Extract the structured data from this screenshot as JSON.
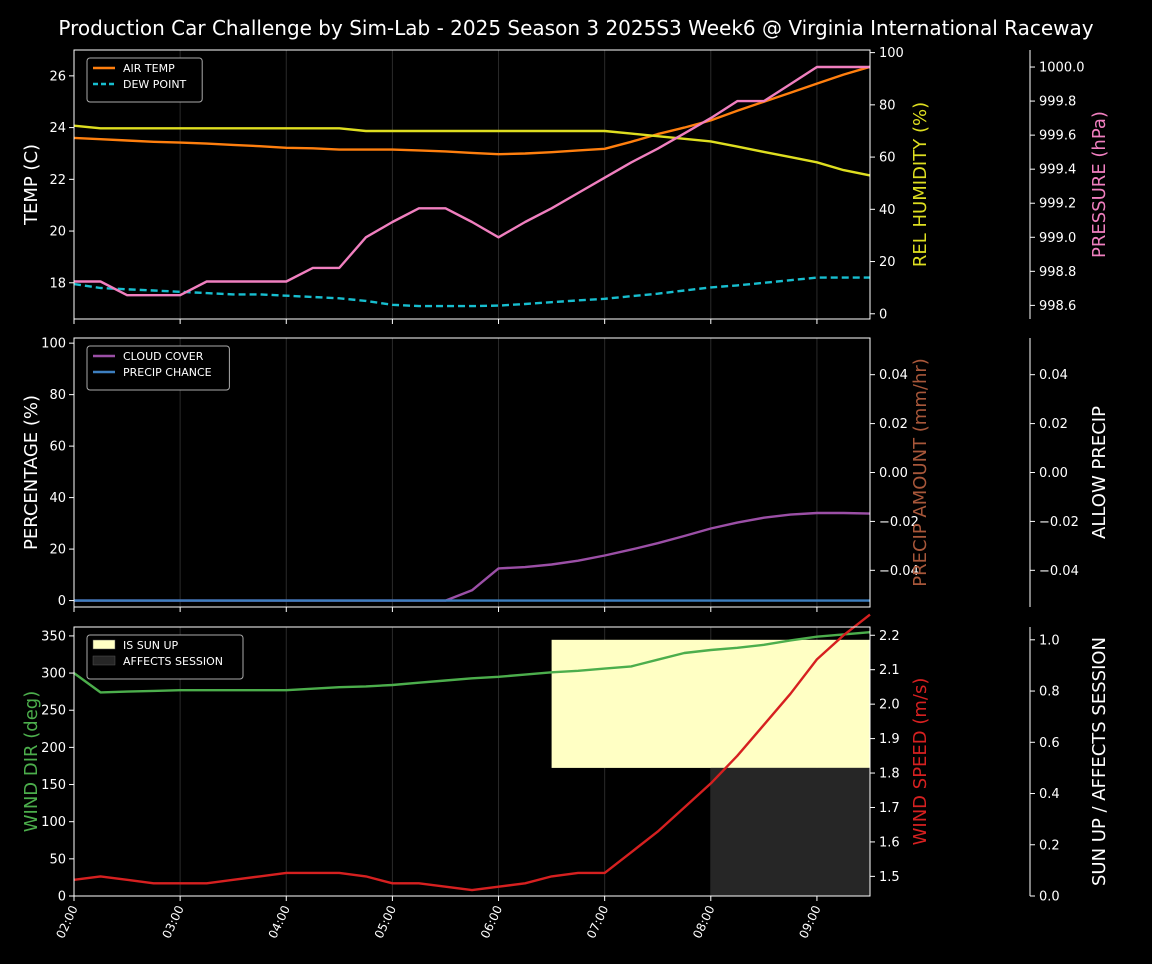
{
  "chart_title": "Production Car Challenge by Sim-Lab - 2025 Season 3 2025S3 Week6 @ Virginia International Raceway",
  "colors": {
    "background": "#000000",
    "axis": "#ffffff",
    "air_temp": "#ff7f0e",
    "dew_point": "#17becf",
    "rel_humidity": "#dede20",
    "pressure": "#f07fbf",
    "cloud_cover": "#9b4fa6",
    "precip_chance": "#3d7fc0",
    "precip_amount_label": "#a8573a",
    "wind_dir": "#4cae4c",
    "wind_speed": "#d62020",
    "sun_up": "#ffffc4",
    "affects_session": "#262626"
  },
  "chart_data": [
    {
      "type": "line",
      "x": [
        "02:00",
        "02:15",
        "02:30",
        "02:45",
        "03:00",
        "03:15",
        "03:30",
        "03:45",
        "04:00",
        "04:15",
        "04:30",
        "04:45",
        "05:00",
        "05:15",
        "05:30",
        "05:45",
        "06:00",
        "06:15",
        "06:30",
        "06:45",
        "07:00",
        "07:15",
        "07:30",
        "07:45",
        "08:00",
        "08:15",
        "08:30",
        "08:45",
        "09:00",
        "09:15",
        "09:30"
      ],
      "xtick_labels": [
        "02:00",
        "03:00",
        "04:00",
        "05:00",
        "06:00",
        "07:00",
        "08:00",
        "09:00"
      ],
      "legend_position": "top-left",
      "axes": {
        "left": {
          "label": "TEMP (C)",
          "ylim": [
            16.6,
            27.0
          ],
          "ticks": [
            "18",
            "20",
            "22",
            "24",
            "26"
          ]
        },
        "right1": {
          "label": "REL HUMIDITY (%)",
          "ylim": [
            -2,
            101
          ],
          "ticks": [
            "0",
            "20",
            "40",
            "60",
            "80",
            "100"
          ]
        },
        "right2": {
          "label": "PRESSURE (hPa)",
          "ylim": [
            998.52,
            1000.1
          ],
          "ticks": [
            "998.6",
            "998.8",
            "999.0",
            "999.2",
            "999.4",
            "999.6",
            "999.8",
            "1000.0"
          ]
        }
      },
      "series": [
        {
          "name": "AIR TEMP",
          "axis": "left",
          "values": [
            23.6,
            23.55,
            23.5,
            23.45,
            23.42,
            23.38,
            23.33,
            23.28,
            23.22,
            23.2,
            23.15,
            23.15,
            23.15,
            23.12,
            23.08,
            23.02,
            22.97,
            23.0,
            23.05,
            23.12,
            23.18,
            23.45,
            23.75,
            24.0,
            24.28,
            24.65,
            25.0,
            25.35,
            25.7,
            26.05,
            26.35
          ]
        },
        {
          "name": "DEW POINT",
          "axis": "left",
          "values": [
            17.95,
            17.8,
            17.75,
            17.7,
            17.65,
            17.6,
            17.55,
            17.55,
            17.5,
            17.45,
            17.4,
            17.3,
            17.15,
            17.1,
            17.1,
            17.1,
            17.12,
            17.18,
            17.25,
            17.32,
            17.38,
            17.48,
            17.58,
            17.7,
            17.82,
            17.9,
            18.0,
            18.1,
            18.2,
            18.2,
            18.2
          ]
        },
        {
          "name": "REL HUMIDITY",
          "axis": "right1",
          "values": [
            72,
            71,
            71,
            71,
            71,
            71,
            71,
            71,
            71,
            71,
            71,
            70,
            70,
            70,
            70,
            70,
            70,
            70,
            70,
            70,
            70,
            69,
            68,
            67,
            66,
            64,
            62,
            60,
            58,
            55,
            53
          ]
        },
        {
          "name": "PRESSURE",
          "axis": "right2",
          "values": [
            998.74,
            998.74,
            998.66,
            998.66,
            998.66,
            998.74,
            998.74,
            998.74,
            998.74,
            998.82,
            998.82,
            999.0,
            999.09,
            999.17,
            999.17,
            999.09,
            999.0,
            999.09,
            999.17,
            999.26,
            999.35,
            999.44,
            999.52,
            999.61,
            999.7,
            999.8,
            999.8,
            999.9,
            1000.0,
            1000.0,
            1000.0
          ]
        }
      ]
    },
    {
      "type": "line",
      "x": [
        "02:00",
        "02:15",
        "02:30",
        "02:45",
        "03:00",
        "03:15",
        "03:30",
        "03:45",
        "04:00",
        "04:15",
        "04:30",
        "04:45",
        "05:00",
        "05:15",
        "05:30",
        "05:45",
        "06:00",
        "06:15",
        "06:30",
        "06:45",
        "07:00",
        "07:15",
        "07:30",
        "07:45",
        "08:00",
        "08:15",
        "08:30",
        "08:45",
        "09:00",
        "09:15",
        "09:30"
      ],
      "legend_position": "top-left",
      "axes": {
        "left": {
          "label": "PERCENTAGE (%)",
          "ylim": [
            -2.5,
            102
          ],
          "ticks": [
            "0",
            "20",
            "40",
            "60",
            "80",
            "100"
          ]
        },
        "right1": {
          "label": "PRECIP AMOUNT (mm/hr)",
          "ylim": [
            -0.055,
            0.055
          ],
          "ticks": [
            "−0.04",
            "−0.02",
            "0.00",
            "0.02",
            "0.04"
          ]
        },
        "right2": {
          "label": "ALLOW PRECIP",
          "ylim": [
            -0.055,
            0.055
          ],
          "ticks": [
            "−0.04",
            "−0.02",
            "0.00",
            "0.02",
            "0.04"
          ]
        }
      },
      "series": [
        {
          "name": "CLOUD COVER",
          "axis": "left",
          "values": [
            0,
            0,
            0,
            0,
            0,
            0,
            0,
            0,
            0,
            0,
            0,
            0,
            0,
            0,
            0,
            4,
            12.5,
            13,
            14,
            15.5,
            17.5,
            19.8,
            22.3,
            25.1,
            28,
            30.3,
            32.2,
            33.4,
            34,
            34,
            33.8
          ]
        },
        {
          "name": "PRECIP CHANCE",
          "axis": "left",
          "values": [
            0,
            0,
            0,
            0,
            0,
            0,
            0,
            0,
            0,
            0,
            0,
            0,
            0,
            0,
            0,
            0,
            0,
            0,
            0,
            0,
            0,
            0,
            0,
            0,
            0,
            0,
            0,
            0,
            0,
            0,
            0
          ]
        }
      ]
    },
    {
      "type": "line",
      "x": [
        "02:00",
        "02:15",
        "02:30",
        "02:45",
        "03:00",
        "03:15",
        "03:30",
        "03:45",
        "04:00",
        "04:15",
        "04:30",
        "04:45",
        "05:00",
        "05:15",
        "05:30",
        "05:45",
        "06:00",
        "06:15",
        "06:30",
        "06:45",
        "07:00",
        "07:15",
        "07:30",
        "07:45",
        "08:00",
        "08:15",
        "08:30",
        "08:45",
        "09:00",
        "09:15",
        "09:30"
      ],
      "legend_position": "top-left",
      "axes": {
        "left": {
          "label": "WIND DIR (deg)",
          "ylim": [
            0,
            362
          ],
          "ticks": [
            "0",
            "50",
            "100",
            "150",
            "200",
            "250",
            "300",
            "350"
          ]
        },
        "right1": {
          "label": "WIND SPEED (m/s)",
          "ylim": [
            1.443,
            2.224
          ],
          "ticks": [
            "1.5",
            "1.6",
            "1.7",
            "1.8",
            "1.9",
            "2.0",
            "2.1",
            "2.2"
          ]
        },
        "right2": {
          "label": "SUN UP / AFFECTS SESSION",
          "ylim": [
            0,
            1.05
          ],
          "ticks": [
            "0.0",
            "0.2",
            "0.4",
            "0.6",
            "0.8",
            "1.0"
          ]
        }
      },
      "series": [
        {
          "name": "WIND DIR",
          "axis": "left",
          "values": [
            300,
            274,
            275,
            276,
            277,
            277,
            277,
            277,
            277,
            279,
            281,
            282,
            284,
            287,
            290,
            293,
            295,
            298,
            301,
            303,
            306,
            309,
            318,
            327,
            331,
            334,
            338,
            344,
            349,
            352,
            355
          ]
        },
        {
          "name": "WIND SPEED",
          "axis": "right1",
          "values": [
            1.49,
            1.5,
            1.49,
            1.48,
            1.48,
            1.48,
            1.49,
            1.5,
            1.51,
            1.51,
            1.51,
            1.5,
            1.48,
            1.48,
            1.47,
            1.46,
            1.47,
            1.48,
            1.5,
            1.51,
            1.51,
            1.57,
            1.63,
            1.7,
            1.77,
            1.85,
            1.94,
            2.03,
            2.13,
            2.2,
            2.26
          ]
        }
      ],
      "regions": [
        {
          "name": "IS SUN UP",
          "axis": "right2",
          "x_start": "06:30",
          "x_end": "09:30",
          "y_start": 0.5,
          "y_end": 1.0
        },
        {
          "name": "AFFECTS SESSION",
          "axis": "right2",
          "x_start": "08:00",
          "x_end": "09:30",
          "y_start": 0.0,
          "y_end": 0.5
        }
      ]
    }
  ]
}
